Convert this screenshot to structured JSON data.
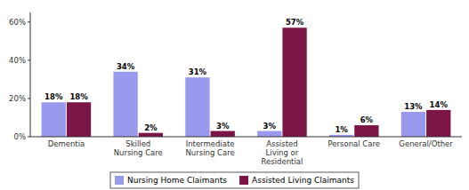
{
  "chart_data": {
    "type": "bar",
    "categories": [
      "Dementia",
      "Skilled\nNursing Care",
      "Intermediate\nNursing Care",
      "Assisted\nLiving or\nResidential",
      "Personal Care",
      "General/Other"
    ],
    "series": [
      {
        "name": "Nursing Home Claimants",
        "color": "#9999ee",
        "values": [
          18,
          34,
          31,
          3,
          1,
          13
        ],
        "value_labels": [
          "18%",
          "34%",
          "31%",
          "3%",
          "1%",
          "13%"
        ]
      },
      {
        "name": "Assisted Living Claimants",
        "color": "#7b1545",
        "values": [
          18,
          2,
          3,
          57,
          6,
          14
        ],
        "value_labels": [
          "18%",
          "2%",
          "3%",
          "57%",
          "6%",
          "14%"
        ]
      }
    ],
    "ylim": [
      0,
      65
    ],
    "yticks": [
      {
        "value": 0,
        "label": "0%"
      },
      {
        "value": 20,
        "label": "20%"
      },
      {
        "value": 40,
        "label": "40%"
      },
      {
        "value": 60,
        "label": "60%"
      }
    ],
    "data_labels": true,
    "grid": false,
    "legend": "bottom"
  }
}
